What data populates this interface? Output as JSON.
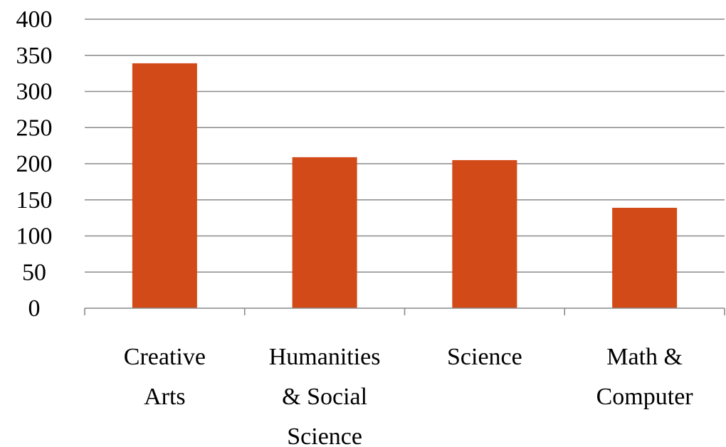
{
  "chart_data": {
    "type": "bar",
    "title": "",
    "xlabel": "",
    "ylabel": "",
    "ylim": [
      0,
      400
    ],
    "y_ticks": [
      0,
      50,
      100,
      150,
      200,
      250,
      300,
      350,
      400
    ],
    "grid": true,
    "legend": "none",
    "categories": [
      [
        "Creative",
        "Arts"
      ],
      [
        "Humanities",
        "& Social",
        "Science"
      ],
      [
        "Science"
      ],
      [
        "Math &",
        "Computer"
      ]
    ],
    "values": [
      339,
      209,
      205,
      139
    ],
    "bar_color": "#d24a18",
    "grid_color": "#8a8a8a"
  }
}
